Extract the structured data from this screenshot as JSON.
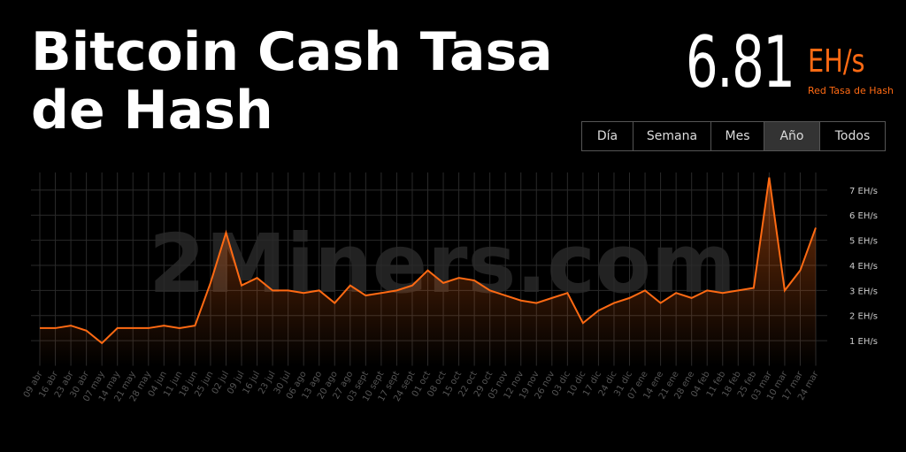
{
  "header": {
    "title": "Bitcoin Cash Tasa de Hash",
    "value": "6.81",
    "unit": "EH/s",
    "caption": "Red Tasa de Hash"
  },
  "buttons": [
    "Día",
    "Semana",
    "Mes",
    "Año",
    "Todos"
  ],
  "active_button": 3,
  "watermark": "2Miners.com",
  "chart_data": {
    "type": "line",
    "color": "#ff6a13",
    "grid": true,
    "categories": [
      "09 abr",
      "16 abr",
      "23 abr",
      "30 abr",
      "07 may",
      "14 may",
      "21 may",
      "28 may",
      "04 jun",
      "11 jun",
      "18 jun",
      "25 jun",
      "02 jul",
      "09 jul",
      "16 jul",
      "23 jul",
      "30 jul",
      "06 ago",
      "13 ago",
      "20 ago",
      "27 ago",
      "03 sept",
      "10 sept",
      "17 sept",
      "24 sept",
      "01 oct",
      "08 oct",
      "15 oct",
      "22 oct",
      "29 oct",
      "05 nov",
      "12 nov",
      "19 nov",
      "26 nov",
      "03 dic",
      "10 dic",
      "17 dic",
      "24 dic",
      "31 dic",
      "07 ene",
      "14 ene",
      "21 ene",
      "28 ene",
      "04 feb",
      "11 feb",
      "18 feb",
      "25 feb",
      "03 mar",
      "10 mar",
      "17 mar",
      "24 mar"
    ],
    "values": [
      1.5,
      1.5,
      1.6,
      1.4,
      0.9,
      1.5,
      1.5,
      1.5,
      1.6,
      1.5,
      1.6,
      3.3,
      5.3,
      3.2,
      3.5,
      3.0,
      3.0,
      2.9,
      3.0,
      2.5,
      3.2,
      2.8,
      2.9,
      3.0,
      3.2,
      3.8,
      3.3,
      3.5,
      3.4,
      3.0,
      2.8,
      2.6,
      2.5,
      2.7,
      2.9,
      1.7,
      2.2,
      2.5,
      2.7,
      3.0,
      2.5,
      2.9,
      2.7,
      3.0,
      2.9,
      3.0,
      3.1,
      7.5,
      3.0,
      3.8,
      5.5
    ],
    "ylim": [
      0,
      7.7
    ],
    "yticks": [
      {
        "value": 1,
        "label": "1 EH/s"
      },
      {
        "value": 2,
        "label": "2 EH/s"
      },
      {
        "value": 3,
        "label": "3 EH/s"
      },
      {
        "value": 4,
        "label": "4 EH/s"
      },
      {
        "value": 5,
        "label": "5 EH/s"
      },
      {
        "value": 6,
        "label": "6 EH/s"
      },
      {
        "value": 7,
        "label": "7 EH/s"
      }
    ]
  }
}
